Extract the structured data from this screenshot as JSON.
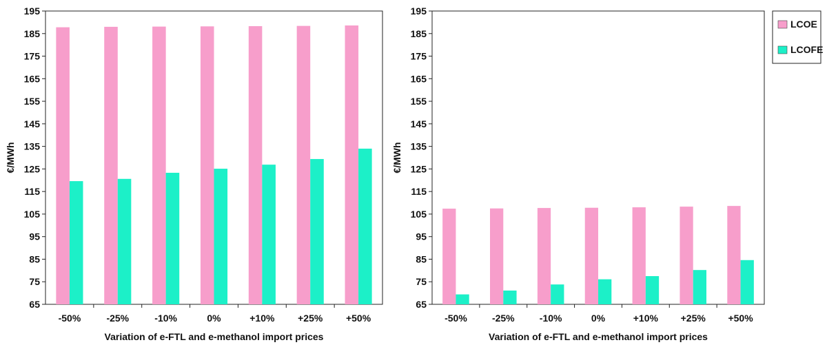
{
  "chart_data": [
    {
      "type": "bar",
      "title": "",
      "xlabel": "Variation of e-FTL and e-methanol import prices",
      "ylabel": "€/MWh",
      "ylim": [
        65,
        195
      ],
      "yticks": [
        65,
        75,
        85,
        95,
        105,
        115,
        125,
        135,
        145,
        155,
        165,
        175,
        185,
        195
      ],
      "categories": [
        "-50%",
        "-25%",
        "-10%",
        "0%",
        "+10%",
        "+25%",
        "+50%"
      ],
      "grid": false,
      "series": [
        {
          "name": "LCOE",
          "color": "#f79ecb",
          "values": [
            187.8,
            188.0,
            188.1,
            188.2,
            188.3,
            188.4,
            188.6
          ]
        },
        {
          "name": "LCOFE",
          "color": "#1cf0c8",
          "values": [
            119.6,
            120.6,
            123.3,
            125.1,
            126.9,
            129.4,
            134.0
          ]
        }
      ]
    },
    {
      "type": "bar",
      "title": "",
      "xlabel": "Variation of e-FTL and e-methanol import prices",
      "ylabel": "€/MWh",
      "ylim": [
        65,
        195
      ],
      "yticks": [
        65,
        75,
        85,
        95,
        105,
        115,
        125,
        135,
        145,
        155,
        165,
        175,
        185,
        195
      ],
      "categories": [
        "-50%",
        "-25%",
        "-10%",
        "0%",
        "+10%",
        "+25%",
        "+50%"
      ],
      "grid": false,
      "legend": "right",
      "series": [
        {
          "name": "LCOE",
          "color": "#f79ecb",
          "values": [
            107.4,
            107.5,
            107.7,
            107.8,
            108.0,
            108.3,
            108.6
          ]
        },
        {
          "name": "LCOFE",
          "color": "#1cf0c8",
          "values": [
            69.4,
            71.1,
            73.8,
            76.1,
            77.5,
            80.2,
            84.6
          ]
        }
      ]
    }
  ]
}
